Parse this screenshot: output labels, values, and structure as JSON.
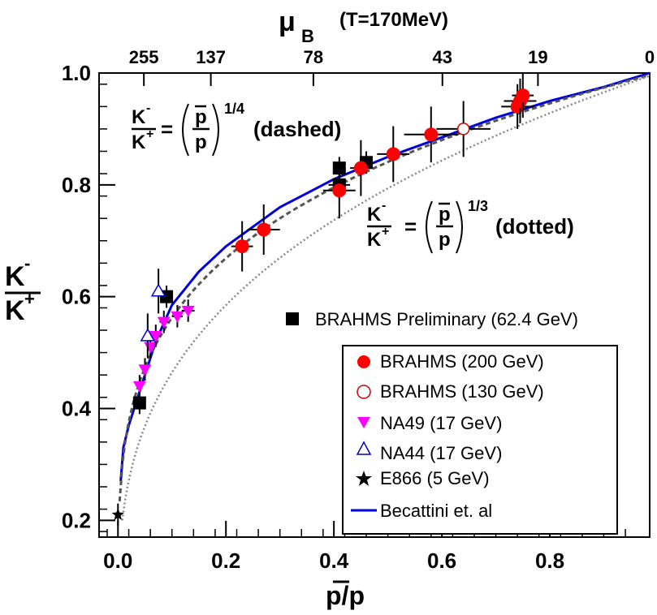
{
  "chart_data": {
    "type": "scatter",
    "xlim": [
      -0.035,
      0.985
    ],
    "ylim": [
      0.17,
      1.0
    ],
    "x_ticks": [
      "0.0",
      "0.2",
      "0.4",
      "0.6",
      "0.8"
    ],
    "x_tick_values": [
      0.0,
      0.2,
      0.4,
      0.6,
      0.8
    ],
    "y_ticks": [
      "0.2",
      "0.4",
      "0.6",
      "0.8",
      "1.0"
    ],
    "y_tick_values": [
      0.2,
      0.4,
      0.6,
      0.8,
      1.0
    ],
    "xlabel": "p/p",
    "ylabel_num": "K",
    "ylabel_num_sup": "-",
    "ylabel_den": "K",
    "ylabel_den_sup": "+",
    "top_axis": {
      "label_mu": "μ",
      "label_sub": "B",
      "label_cond": "(T=170MeV)",
      "ticks": [
        {
          "label": "255",
          "x": 0.048
        },
        {
          "label": "137",
          "x": 0.172
        },
        {
          "label": "78",
          "x": 0.362
        },
        {
          "label": "43",
          "x": 0.601
        },
        {
          "label": "19",
          "x": 0.778
        },
        {
          "label": "0",
          "x": 0.985
        }
      ]
    },
    "formula_dashed": {
      "lhs_num": "K",
      "lhs_num_sup": "-",
      "lhs_den": "K",
      "lhs_den_sup": "+",
      "eq": "=",
      "frac_num": "p",
      "frac_den": "p",
      "power": "1/4",
      "note": "(dashed)"
    },
    "formula_dotted": {
      "lhs_num": "K",
      "lhs_num_sup": "-",
      "lhs_den": "K",
      "lhs_den_sup": "+",
      "eq": "=",
      "frac_num": "p",
      "frac_den": "p",
      "power": "1/3",
      "note": "(dotted)"
    },
    "series": [
      {
        "name": "BRAHMS Preliminary (62.4 GeV)",
        "marker": "square-filled",
        "color": "#000000",
        "points": [
          {
            "x": 0.04,
            "y": 0.41,
            "xerr": 0.005,
            "yerr": 0.02
          },
          {
            "x": 0.09,
            "y": 0.6,
            "xerr": 0.005,
            "yerr": 0.02
          },
          {
            "x": 0.41,
            "y": 0.8,
            "xerr": 0.02,
            "yerr": 0.025
          },
          {
            "x": 0.41,
            "y": 0.83,
            "xerr": 0.01,
            "yerr": 0.02
          },
          {
            "x": 0.46,
            "y": 0.84,
            "xerr": 0.01,
            "yerr": 0.02
          }
        ]
      },
      {
        "name": "BRAHMS (200 GeV)",
        "marker": "circle-filled",
        "color": "#ff0000",
        "points": [
          {
            "x": 0.23,
            "y": 0.69,
            "xerr": 0.02,
            "yerr": 0.045
          },
          {
            "x": 0.27,
            "y": 0.72,
            "xerr": 0.03,
            "yerr": 0.045
          },
          {
            "x": 0.41,
            "y": 0.79,
            "xerr": 0.03,
            "yerr": 0.05
          },
          {
            "x": 0.45,
            "y": 0.83,
            "xerr": 0.02,
            "yerr": 0.05
          },
          {
            "x": 0.51,
            "y": 0.855,
            "xerr": 0.03,
            "yerr": 0.05
          },
          {
            "x": 0.58,
            "y": 0.89,
            "xerr": 0.05,
            "yerr": 0.05
          },
          {
            "x": 0.74,
            "y": 0.94,
            "xerr": 0.03,
            "yerr": 0.04
          },
          {
            "x": 0.745,
            "y": 0.95,
            "xerr": 0.03,
            "yerr": 0.04
          },
          {
            "x": 0.75,
            "y": 0.96,
            "xerr": 0.02,
            "yerr": 0.04
          }
        ]
      },
      {
        "name": "BRAHMS (130 GeV)",
        "marker": "circle-open",
        "color": "#cc0000",
        "points": [
          {
            "x": 0.64,
            "y": 0.9,
            "xerr": 0.05,
            "yerr": 0.05
          }
        ]
      },
      {
        "name": "NA49 (17 GeV)",
        "marker": "triangle-down-filled",
        "color": "#ff00ff",
        "points": [
          {
            "x": 0.04,
            "y": 0.44,
            "xerr": 0.005,
            "yerr": 0.02
          },
          {
            "x": 0.05,
            "y": 0.47,
            "xerr": 0.005,
            "yerr": 0.02
          },
          {
            "x": 0.06,
            "y": 0.51,
            "xerr": 0.005,
            "yerr": 0.02
          },
          {
            "x": 0.07,
            "y": 0.53,
            "xerr": 0.008,
            "yerr": 0.02
          },
          {
            "x": 0.085,
            "y": 0.555,
            "xerr": 0.008,
            "yerr": 0.02
          },
          {
            "x": 0.11,
            "y": 0.565,
            "xerr": 0.01,
            "yerr": 0.02
          },
          {
            "x": 0.13,
            "y": 0.575,
            "xerr": 0.012,
            "yerr": 0.02
          }
        ]
      },
      {
        "name": "NA44 (17 GeV)",
        "marker": "triangle-up-open",
        "color": "#0000cc",
        "points": [
          {
            "x": 0.055,
            "y": 0.53,
            "xerr": 0.005,
            "yerr": 0.04
          },
          {
            "x": 0.075,
            "y": 0.61,
            "xerr": 0.005,
            "yerr": 0.04
          }
        ]
      },
      {
        "name": "E866 (5 GeV)",
        "marker": "star",
        "color": "#000000",
        "points": [
          {
            "x": 0.0,
            "y": 0.21,
            "xerr": 0.0,
            "yerr": 0.02
          }
        ]
      }
    ],
    "curves": [
      {
        "name": "Becattini et. al",
        "style": "solid",
        "color": "#0000dd",
        "points": [
          [
            0.005,
            0.27
          ],
          [
            0.01,
            0.33
          ],
          [
            0.02,
            0.37
          ],
          [
            0.03,
            0.4
          ],
          [
            0.05,
            0.46
          ],
          [
            0.07,
            0.52
          ],
          [
            0.1,
            0.585
          ],
          [
            0.15,
            0.645
          ],
          [
            0.2,
            0.69
          ],
          [
            0.3,
            0.76
          ],
          [
            0.4,
            0.81
          ],
          [
            0.5,
            0.85
          ],
          [
            0.6,
            0.885
          ],
          [
            0.7,
            0.92
          ],
          [
            0.8,
            0.95
          ],
          [
            0.9,
            0.975
          ],
          [
            0.985,
            1.0
          ]
        ]
      },
      {
        "name": "(p/p)^1/4",
        "style": "dashed",
        "color": "#555555",
        "power": 0.25
      },
      {
        "name": "(p/p)^1/3",
        "style": "dotted",
        "color": "#888888",
        "power": 0.3333
      }
    ],
    "legend_outside": "BRAHMS Preliminary (62.4 GeV)",
    "legend_box": [
      "BRAHMS (200 GeV)",
      "BRAHMS (130 GeV)",
      "NA49 (17 GeV)",
      "NA44 (17 GeV)",
      "E866 (5 GeV)",
      "Becattini et. al"
    ]
  }
}
